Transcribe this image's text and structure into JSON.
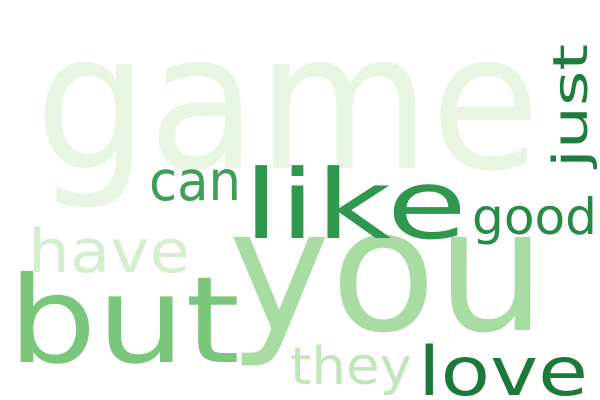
{
  "word_cloud": {
    "words": [
      {
        "key": "game",
        "text": "game",
        "color": "#e8f5e3"
      },
      {
        "key": "you",
        "text": "you",
        "color": "#a9dca3"
      },
      {
        "key": "but",
        "text": "but",
        "color": "#7ac77b"
      },
      {
        "key": "like",
        "text": "like",
        "color": "#2f974e"
      },
      {
        "key": "have",
        "text": "have",
        "color": "#d4eece"
      },
      {
        "key": "can",
        "text": "can",
        "color": "#3f9f58"
      },
      {
        "key": "good",
        "text": "good",
        "color": "#268b47"
      },
      {
        "key": "just",
        "text": "just",
        "color": "#1e7d3e"
      },
      {
        "key": "they",
        "text": "they",
        "color": "#c2e6bb"
      },
      {
        "key": "love",
        "text": "love",
        "color": "#1b7a3a"
      }
    ]
  }
}
